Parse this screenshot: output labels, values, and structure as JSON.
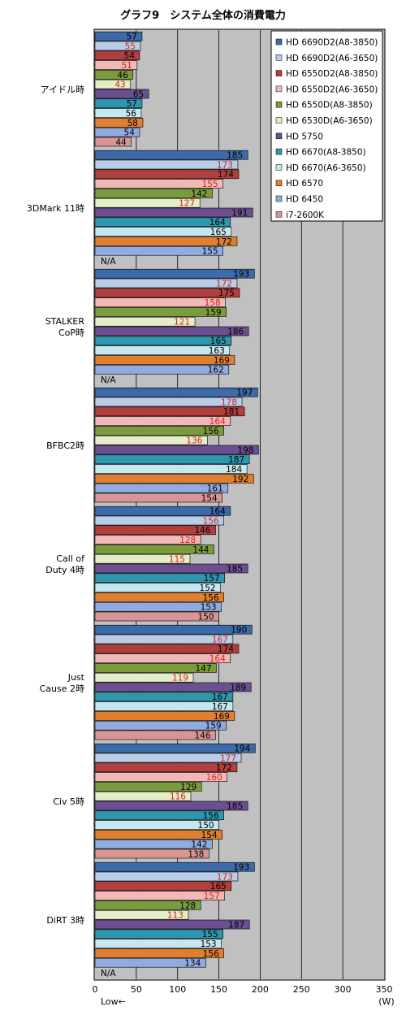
{
  "chart_data": {
    "type": "bar",
    "orientation": "horizontal",
    "title": "グラフ9　システム全体の消費電力",
    "unit_label": "(W)",
    "low_label": "Low←",
    "xlim": [
      0,
      350
    ],
    "xticks": [
      0,
      50,
      100,
      150,
      200,
      250,
      300,
      350
    ],
    "grid": true,
    "legend_position": "top-right",
    "na_label": "N/A",
    "categories": [
      "アイドル時",
      "3DMark 11時",
      "STALKER\nCoP時",
      "BFBC2時",
      "Call of\nDuty 4時",
      "Just\nCause 2時",
      "Civ 5時",
      "DiRT 3時"
    ],
    "series": [
      {
        "name": "HD 6690D2(A8-3850)",
        "color": "#3d6aa8",
        "label_color": "#000000",
        "values": [
          57,
          185,
          193,
          197,
          164,
          190,
          194,
          193
        ]
      },
      {
        "name": "HD 6690D2(A6-3650)",
        "color": "#b9cde6",
        "label_color": "#e0201b",
        "values": [
          55,
          173,
          172,
          178,
          156,
          167,
          177,
          173
        ]
      },
      {
        "name": "HD 6550D2(A8-3850)",
        "color": "#b13f3d",
        "label_color": "#000000",
        "values": [
          54,
          174,
          175,
          181,
          146,
          174,
          172,
          165
        ]
      },
      {
        "name": "HD 6550D2(A6-3650)",
        "color": "#f0b9b7",
        "label_color": "#e0201b",
        "values": [
          51,
          155,
          158,
          164,
          128,
          164,
          160,
          157
        ]
      },
      {
        "name": "HD 6550D(A8-3850)",
        "color": "#7a9c3c",
        "label_color": "#000000",
        "values": [
          46,
          142,
          159,
          156,
          144,
          147,
          129,
          128
        ]
      },
      {
        "name": "HD 6530D(A6-3650)",
        "color": "#e4edc7",
        "label_color": "#e0201b",
        "values": [
          43,
          127,
          121,
          136,
          115,
          119,
          116,
          113
        ]
      },
      {
        "name": "HD 5750",
        "color": "#6b4f91",
        "label_color": "#000000",
        "values": [
          65,
          191,
          186,
          198,
          185,
          189,
          185,
          187
        ]
      },
      {
        "name": "HD 6670(A8-3850)",
        "color": "#2f97ad",
        "label_color": "#000000",
        "values": [
          57,
          164,
          165,
          187,
          157,
          167,
          156,
          155
        ]
      },
      {
        "name": "HD 6670(A6-3650)",
        "color": "#c6e6f0",
        "label_color": "#000000",
        "values": [
          56,
          165,
          163,
          184,
          152,
          167,
          150,
          153
        ]
      },
      {
        "name": "HD 6570",
        "color": "#e07f2e",
        "label_color": "#000000",
        "values": [
          58,
          172,
          169,
          192,
          156,
          169,
          154,
          156
        ]
      },
      {
        "name": "HD 6450",
        "color": "#8fabe0",
        "label_color": "#000000",
        "values": [
          54,
          155,
          162,
          161,
          153,
          159,
          142,
          134
        ]
      },
      {
        "name": "i7-2600K",
        "color": "#d99594",
        "label_color": "#000000",
        "values": [
          44,
          null,
          null,
          154,
          150,
          146,
          138,
          null
        ]
      }
    ]
  }
}
